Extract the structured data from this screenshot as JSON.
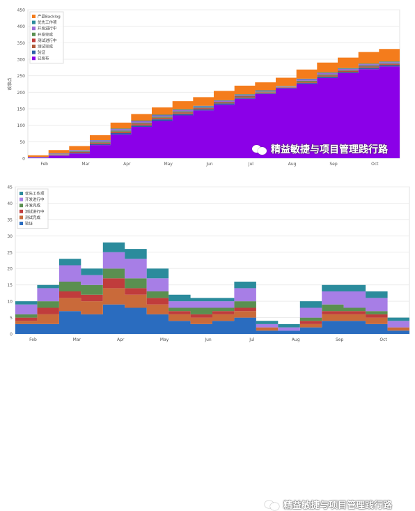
{
  "charts": [
    {
      "type": "area",
      "y_label": "故事点",
      "ylim": [
        0,
        450
      ],
      "y_ticks": [
        "0",
        "50",
        "100",
        "150",
        "200",
        "250",
        "300",
        "350",
        "400",
        "450"
      ],
      "x_ticks": [
        "Feb",
        "Mar",
        "Apr",
        "May",
        "Jun",
        "Jul",
        "Aug",
        "Sep",
        "Oct"
      ],
      "legend_placement": "top-left",
      "legend": [
        {
          "label": "产品Backlog",
          "color": "#f47c1c"
        },
        {
          "label": "优先工作项",
          "color": "#2b8b9c"
        },
        {
          "label": "开发进行中",
          "color": "#9a6ad8"
        },
        {
          "label": "开发完成",
          "color": "#5a8f50"
        },
        {
          "label": "测试进行中",
          "color": "#c03c3c"
        },
        {
          "label": "测试完成",
          "color": "#b05a3a"
        },
        {
          "label": "验证",
          "color": "#2a5fa8"
        },
        {
          "label": "已发布",
          "color": "#8b00e8"
        }
      ],
      "watermark": "精益敏捷与项目管理践行路"
    },
    {
      "type": "area",
      "y_label": "故事点",
      "ylim": [
        0,
        45
      ],
      "y_ticks": [
        "0",
        "5",
        "10",
        "15",
        "20",
        "25",
        "30",
        "35",
        "40",
        "45"
      ],
      "x_ticks": [
        "Feb",
        "Mar",
        "Apr",
        "May",
        "Jun",
        "Jul",
        "Aug",
        "Sep",
        "Oct"
      ],
      "legend_placement": "top-left",
      "legend": [
        {
          "label": "优先工作项",
          "color": "#2b8b9c"
        },
        {
          "label": "开发进行中",
          "color": "#a77ee6"
        },
        {
          "label": "开发完成",
          "color": "#5a8f50"
        },
        {
          "label": "测试进行中",
          "color": "#c03c3c"
        },
        {
          "label": "测试完成",
          "color": "#c96a3a"
        },
        {
          "label": "验证",
          "color": "#2a6cbf"
        }
      ],
      "watermark": "精益敏捷与项目管理践行路"
    }
  ],
  "chart_data": [
    {
      "type": "area",
      "stacked": true,
      "x": [
        "Jan 15",
        "Feb 1",
        "Feb 15",
        "Mar 1",
        "Mar 15",
        "Apr 1",
        "Apr 15",
        "May 1",
        "May 15",
        "Jun 1",
        "Jun 15",
        "Jul 1",
        "Jul 15",
        "Aug 1",
        "Aug 15",
        "Sep 1",
        "Sep 15",
        "Oct 1",
        "Oct 15"
      ],
      "series": [
        {
          "name": "已发布",
          "values": [
            2,
            8,
            14,
            40,
            72,
            95,
            113,
            130,
            145,
            162,
            180,
            195,
            212,
            225,
            243,
            258,
            270,
            278,
            270
          ]
        },
        {
          "name": "验证",
          "values": [
            1,
            1,
            2,
            3,
            4,
            4,
            5,
            4,
            3,
            4,
            3,
            2,
            2,
            3,
            4,
            3,
            4,
            4,
            4
          ]
        },
        {
          "name": "测试完成",
          "values": [
            0,
            1,
            2,
            2,
            3,
            3,
            3,
            3,
            2,
            2,
            2,
            2,
            1,
            2,
            2,
            2,
            2,
            2,
            2
          ]
        },
        {
          "name": "测试进行中",
          "values": [
            0,
            1,
            1,
            2,
            2,
            3,
            2,
            2,
            2,
            1,
            2,
            1,
            1,
            2,
            2,
            2,
            2,
            2,
            2
          ]
        },
        {
          "name": "开发完成",
          "values": [
            0,
            1,
            2,
            3,
            3,
            3,
            3,
            3,
            2,
            2,
            2,
            2,
            1,
            3,
            3,
            2,
            3,
            2,
            2
          ]
        },
        {
          "name": "开发进行中",
          "values": [
            1,
            2,
            3,
            4,
            4,
            4,
            4,
            4,
            3,
            3,
            3,
            2,
            1,
            4,
            4,
            4,
            4,
            3,
            3
          ]
        },
        {
          "name": "优先工作项",
          "values": [
            0,
            1,
            1,
            1,
            2,
            2,
            2,
            2,
            2,
            2,
            2,
            2,
            1,
            2,
            2,
            2,
            2,
            2,
            2
          ]
        },
        {
          "name": "产品Backlog",
          "values": [
            5,
            10,
            12,
            15,
            18,
            20,
            22,
            25,
            26,
            28,
            26,
            24,
            25,
            28,
            30,
            32,
            35,
            38,
            40
          ]
        }
      ]
    },
    {
      "type": "area",
      "stacked": true,
      "x": [
        "Jan 15",
        "Feb 1",
        "Feb 15",
        "Mar 1",
        "Mar 15",
        "Apr 1",
        "Apr 15",
        "May 1",
        "May 15",
        "Jun 1",
        "Jun 15",
        "Jul 1",
        "Jul 15",
        "Aug 1",
        "Aug 15",
        "Sep 1",
        "Sep 15",
        "Oct 1",
        "Oct 15"
      ],
      "series": [
        {
          "name": "验证",
          "values": [
            3,
            3,
            7,
            6,
            9,
            8,
            6,
            4,
            3,
            4,
            5,
            1,
            1,
            2,
            4,
            4,
            3,
            1,
            1
          ]
        },
        {
          "name": "测试完成",
          "values": [
            1,
            3,
            4,
            4,
            5,
            4,
            3,
            2,
            2,
            2,
            2,
            1,
            0,
            1,
            2,
            2,
            2,
            1,
            1
          ]
        },
        {
          "name": "测试进行中",
          "values": [
            1,
            2,
            2,
            2,
            3,
            2,
            2,
            1,
            1,
            1,
            1,
            0,
            0,
            1,
            1,
            1,
            1,
            0,
            1
          ]
        },
        {
          "name": "开发完成",
          "values": [
            1,
            2,
            3,
            3,
            3,
            3,
            2,
            1,
            2,
            1,
            2,
            0,
            0,
            1,
            2,
            1,
            1,
            0,
            1
          ]
        },
        {
          "name": "开发进行中",
          "values": [
            3,
            4,
            5,
            3,
            5,
            6,
            4,
            2,
            2,
            2,
            4,
            1,
            1,
            3,
            4,
            5,
            4,
            2,
            3
          ]
        },
        {
          "name": "优先工作项",
          "values": [
            1,
            1,
            2,
            2,
            3,
            3,
            3,
            2,
            1,
            1,
            2,
            1,
            1,
            2,
            2,
            2,
            2,
            1,
            2
          ]
        }
      ]
    }
  ]
}
